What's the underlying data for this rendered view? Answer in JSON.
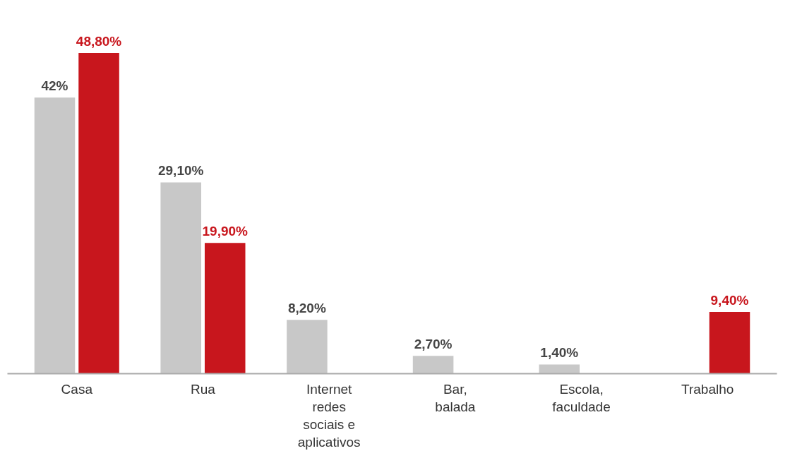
{
  "chart_data": {
    "type": "bar",
    "categories": [
      "Casa",
      "Rua",
      "Internet redes sociais e aplicativos",
      "Bar, balada",
      "Escola, faculdade",
      "Trabalho"
    ],
    "series": [
      {
        "color": "#c8c8c8",
        "values": [
          42,
          29.1,
          8.2,
          2.7,
          1.4,
          null
        ],
        "value_labels": [
          "42%",
          "29,10%",
          "8,20%",
          "2,70%",
          "1,40%",
          null
        ]
      },
      {
        "color": "#c8161d",
        "values": [
          48.8,
          19.9,
          null,
          null,
          null,
          9.4
        ],
        "value_labels": [
          "48,80%",
          "19,90%",
          null,
          null,
          null,
          "9,40%"
        ]
      }
    ]
  }
}
